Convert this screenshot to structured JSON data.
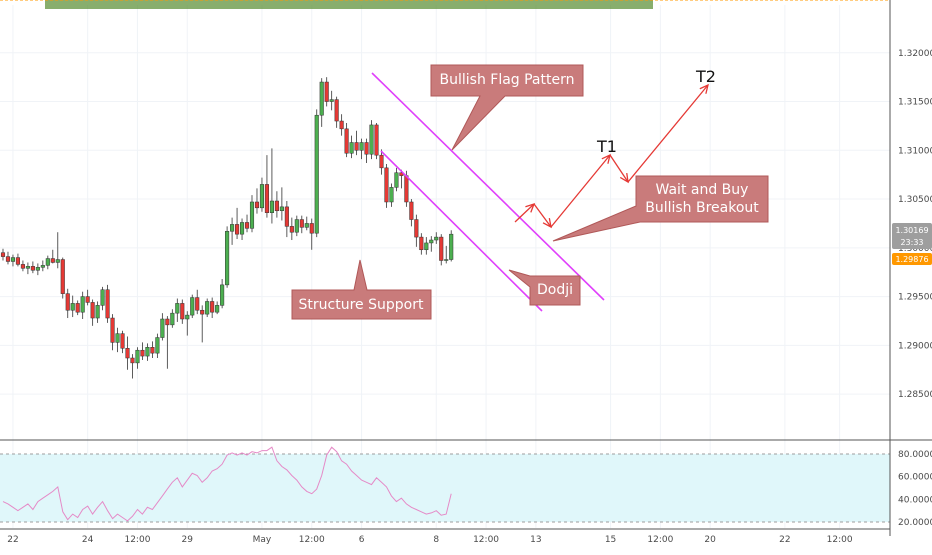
{
  "chart_data": {
    "type": "candlestick",
    "y_axis": {
      "min": 1.2806,
      "max": 1.3249,
      "ticks": [
        1.32,
        1.315,
        1.31,
        1.305,
        1.3,
        1.295,
        1.29,
        1.285
      ],
      "tick_labels": [
        "1.32000",
        "1.31500",
        "1.31000",
        "1.30500",
        "1.30000",
        "1.29500",
        "1.29000",
        "1.28500"
      ]
    },
    "x_axis": {
      "ticks": [
        {
          "label": "22",
          "i": 2
        },
        {
          "label": "24",
          "i": 17
        },
        {
          "label": "12:00",
          "i": 27
        },
        {
          "label": "29",
          "i": 37
        },
        {
          "label": "May",
          "i": 52
        },
        {
          "label": "12:00",
          "i": 62
        },
        {
          "label": "6",
          "i": 72
        },
        {
          "label": "8",
          "i": 87
        },
        {
          "label": "12:00",
          "i": 97
        },
        {
          "label": "13",
          "i": 107
        },
        {
          "label": "15",
          "i": 122
        },
        {
          "label": "12:00",
          "i": 132
        },
        {
          "label": "20",
          "i": 142
        },
        {
          "label": "22",
          "i": 157
        },
        {
          "label": "12:00",
          "i": 168
        }
      ]
    },
    "candles": [
      [
        1.2995,
        1.2999,
        1.2987,
        1.2991
      ],
      [
        1.2991,
        1.2996,
        1.2983,
        1.2986
      ],
      [
        1.2986,
        1.2993,
        1.2981,
        1.299
      ],
      [
        1.299,
        1.2994,
        1.2981,
        1.2983
      ],
      [
        1.2983,
        1.2987,
        1.2976,
        1.2979
      ],
      [
        1.2979,
        1.2985,
        1.2973,
        1.2981
      ],
      [
        1.2981,
        1.2986,
        1.2974,
        1.2977
      ],
      [
        1.2977,
        1.2984,
        1.2972,
        1.298
      ],
      [
        1.298,
        1.2987,
        1.2976,
        1.2982
      ],
      [
        1.2982,
        1.2992,
        1.2978,
        1.2989
      ],
      [
        1.2989,
        1.2998,
        1.2984,
        1.2985
      ],
      [
        1.2985,
        1.3016,
        1.2979,
        1.2988
      ],
      [
        1.2988,
        1.299,
        1.2948,
        1.2953
      ],
      [
        1.2953,
        1.2958,
        1.2928,
        1.2936
      ],
      [
        1.2936,
        1.2951,
        1.2929,
        1.2943
      ],
      [
        1.2943,
        1.2946,
        1.2931,
        1.2934
      ],
      [
        1.2934,
        1.2955,
        1.2927,
        1.295
      ],
      [
        1.295,
        1.2957,
        1.2941,
        1.2944
      ],
      [
        1.2944,
        1.2947,
        1.292,
        1.2928
      ],
      [
        1.2928,
        1.2945,
        1.2923,
        1.2941
      ],
      [
        1.2941,
        1.296,
        1.2936,
        1.2957
      ],
      [
        1.2957,
        1.2962,
        1.2923,
        1.2928
      ],
      [
        1.2928,
        1.2932,
        1.2895,
        1.2903
      ],
      [
        1.2903,
        1.2918,
        1.2893,
        1.2912
      ],
      [
        1.2912,
        1.2915,
        1.2892,
        1.2897
      ],
      [
        1.2897,
        1.2909,
        1.2875,
        1.2887
      ],
      [
        1.2887,
        1.2891,
        1.2866,
        1.2882
      ],
      [
        1.2882,
        1.2898,
        1.2876,
        1.2895
      ],
      [
        1.2895,
        1.2903,
        1.2885,
        1.2889
      ],
      [
        1.2889,
        1.2902,
        1.2884,
        1.2898
      ],
      [
        1.2898,
        1.2904,
        1.2887,
        1.2892
      ],
      [
        1.2892,
        1.2912,
        1.2887,
        1.2908
      ],
      [
        1.2908,
        1.2933,
        1.2905,
        1.2927
      ],
      [
        1.2927,
        1.293,
        1.2876,
        1.2921
      ],
      [
        1.2921,
        1.2937,
        1.2918,
        1.2933
      ],
      [
        1.2933,
        1.2948,
        1.2924,
        1.2943
      ],
      [
        1.2943,
        1.2947,
        1.2922,
        1.2927
      ],
      [
        1.2927,
        1.2935,
        1.291,
        1.2931
      ],
      [
        1.2931,
        1.2952,
        1.2928,
        1.2949
      ],
      [
        1.2949,
        1.2957,
        1.2932,
        1.2936
      ],
      [
        1.2936,
        1.2941,
        1.2903,
        1.2932
      ],
      [
        1.2932,
        1.2948,
        1.2929,
        1.2945
      ],
      [
        1.2945,
        1.2949,
        1.2928,
        1.2934
      ],
      [
        1.2934,
        1.2945,
        1.2932,
        1.2941
      ],
      [
        1.2941,
        1.2968,
        1.2938,
        1.2962
      ],
      [
        1.2962,
        1.3022,
        1.2959,
        1.3017
      ],
      [
        1.3017,
        1.3031,
        1.3003,
        1.3024
      ],
      [
        1.3024,
        1.3041,
        1.3009,
        1.3014
      ],
      [
        1.3014,
        1.303,
        1.3008,
        1.3026
      ],
      [
        1.3026,
        1.3034,
        1.3016,
        1.302
      ],
      [
        1.302,
        1.3054,
        1.3016,
        1.3047
      ],
      [
        1.3047,
        1.3061,
        1.3035,
        1.3041
      ],
      [
        1.3041,
        1.3072,
        1.3037,
        1.3065
      ],
      [
        1.3065,
        1.3095,
        1.3031,
        1.3036
      ],
      [
        1.3036,
        1.3102,
        1.3025,
        1.3048
      ],
      [
        1.3048,
        1.3058,
        1.3031,
        1.3038
      ],
      [
        1.3038,
        1.3062,
        1.3028,
        1.3042
      ],
      [
        1.3042,
        1.3048,
        1.3011,
        1.3022
      ],
      [
        1.3022,
        1.3031,
        1.3008,
        1.3016
      ],
      [
        1.3016,
        1.3033,
        1.3012,
        1.3029
      ],
      [
        1.3029,
        1.3033,
        1.3015,
        1.3021
      ],
      [
        1.3021,
        1.3032,
        1.3018,
        1.3025
      ],
      [
        1.3025,
        1.303,
        1.2998,
        1.3015
      ],
      [
        1.3015,
        1.3142,
        1.3011,
        1.3136
      ],
      [
        1.3136,
        1.3174,
        1.3124,
        1.317
      ],
      [
        1.317,
        1.3175,
        1.3145,
        1.315
      ],
      [
        1.315,
        1.3161,
        1.3141,
        1.3152
      ],
      [
        1.3152,
        1.3155,
        1.3123,
        1.313
      ],
      [
        1.313,
        1.3137,
        1.3115,
        1.3122
      ],
      [
        1.3122,
        1.3128,
        1.3093,
        1.3097
      ],
      [
        1.3097,
        1.3115,
        1.3092,
        1.3108
      ],
      [
        1.3108,
        1.312,
        1.3095,
        1.31
      ],
      [
        1.31,
        1.3112,
        1.3091,
        1.3108
      ],
      [
        1.3108,
        1.3112,
        1.3087,
        1.3096
      ],
      [
        1.3096,
        1.3131,
        1.3091,
        1.3126
      ],
      [
        1.3126,
        1.3128,
        1.3091,
        1.3095
      ],
      [
        1.3095,
        1.3101,
        1.3075,
        1.3082
      ],
      [
        1.3082,
        1.3086,
        1.3041,
        1.3047
      ],
      [
        1.3047,
        1.3066,
        1.3042,
        1.3062
      ],
      [
        1.3062,
        1.3082,
        1.3058,
        1.3077
      ],
      [
        1.3077,
        1.308,
        1.3061,
        1.3074
      ],
      [
        1.3074,
        1.3079,
        1.3042,
        1.3047
      ],
      [
        1.3047,
        1.305,
        1.3022,
        1.3029
      ],
      [
        1.3029,
        1.3034,
        1.3001,
        1.3011
      ],
      [
        1.3011,
        1.3015,
        1.2993,
        1.2998
      ],
      [
        1.2998,
        1.3011,
        1.2993,
        1.3005
      ],
      [
        1.3005,
        1.3012,
        1.2996,
        1.3008
      ],
      [
        1.3008,
        1.3016,
        1.3004,
        1.3011
      ],
      [
        1.3011,
        1.3014,
        1.2982,
        1.2987
      ],
      [
        1.2987,
        1.3002,
        1.2984,
        1.2988
      ],
      [
        1.2988,
        1.3018,
        1.2986,
        1.3014
      ]
    ],
    "rsi": {
      "levels": [
        80,
        20
      ],
      "tick_labels": [
        "80.0000",
        "60.0000",
        "40.0000",
        "20.0000"
      ],
      "tick_values": [
        80,
        60,
        40,
        20
      ],
      "values": [
        38,
        36,
        33,
        30,
        33,
        36,
        31,
        38,
        41,
        44,
        47,
        51,
        29,
        22,
        27,
        24,
        31,
        34,
        27,
        33,
        38,
        30,
        23,
        27,
        24,
        21,
        25,
        31,
        27,
        33,
        31,
        37,
        43,
        49,
        55,
        59,
        51,
        57,
        63,
        61,
        55,
        59,
        65,
        67,
        71,
        79,
        81,
        79,
        81,
        79,
        82,
        81,
        83,
        83,
        86,
        74,
        69,
        66,
        61,
        57,
        51,
        47,
        45,
        49,
        61,
        79,
        86,
        82,
        74,
        71,
        65,
        61,
        57,
        55,
        53,
        59,
        55,
        51,
        43,
        38,
        41,
        36,
        33,
        31,
        29,
        27,
        28,
        30,
        26,
        27,
        45
      ]
    }
  },
  "last_price": "1.30169",
  "countdown": "23:33",
  "support_price": "1.29876",
  "support_level": 1.2987,
  "annotations": {
    "bullish_flag": "Bullish Flag Pattern",
    "structure_support": "Structure Support",
    "dodji": "Dodji",
    "wait_buy_line1": "Wait and Buy",
    "wait_buy_line2": "Bullish Breakout",
    "t1": "T1",
    "t2": "T2"
  },
  "colors": {
    "bull": "#4caf50",
    "bear": "#e53935",
    "flag": "#e040fb",
    "support_zone": "#558b2f",
    "callout": "#c97b7b",
    "arrow": "#e53935",
    "rsi_line": "#e58ac7",
    "rsi_band": "#e0f7fa",
    "support_label": "#ff9800",
    "last_label": "#bdbdbd"
  }
}
